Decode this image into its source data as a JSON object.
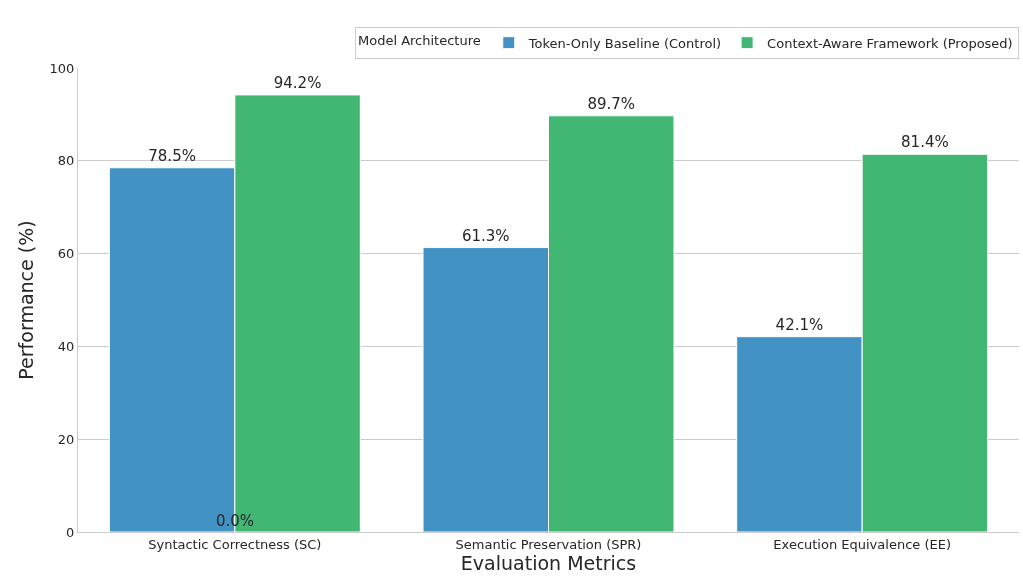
{
  "chart_data": {
    "type": "bar",
    "xlabel": "Evaluation Metrics",
    "ylabel": "Performance (%)",
    "legend_title": "Model Architecture",
    "categories": [
      "Syntactic Correctness (SC)",
      "Semantic Preservation (SPR)",
      "Execution Equivalence (EE)"
    ],
    "series": [
      {
        "name": "Token-Only Baseline (Control)",
        "color": "#4392c4",
        "values": [
          78.5,
          61.3,
          42.1
        ],
        "value_labels": [
          "78.5%",
          "61.3%",
          "42.1%"
        ]
      },
      {
        "name": "Context-Aware Framework (Proposed)",
        "color": "#42b673",
        "values": [
          94.2,
          89.7,
          81.4
        ],
        "value_labels": [
          "94.2%",
          "89.7%",
          "81.4%"
        ]
      }
    ],
    "annotations": [
      {
        "text": "0.0%",
        "x": "Syntactic Correctness (SC)",
        "y": 0
      }
    ],
    "ylim": [
      0,
      100
    ],
    "yticks": [
      0,
      20,
      40,
      60,
      80,
      100
    ],
    "grid": "y",
    "legend": "top right"
  }
}
